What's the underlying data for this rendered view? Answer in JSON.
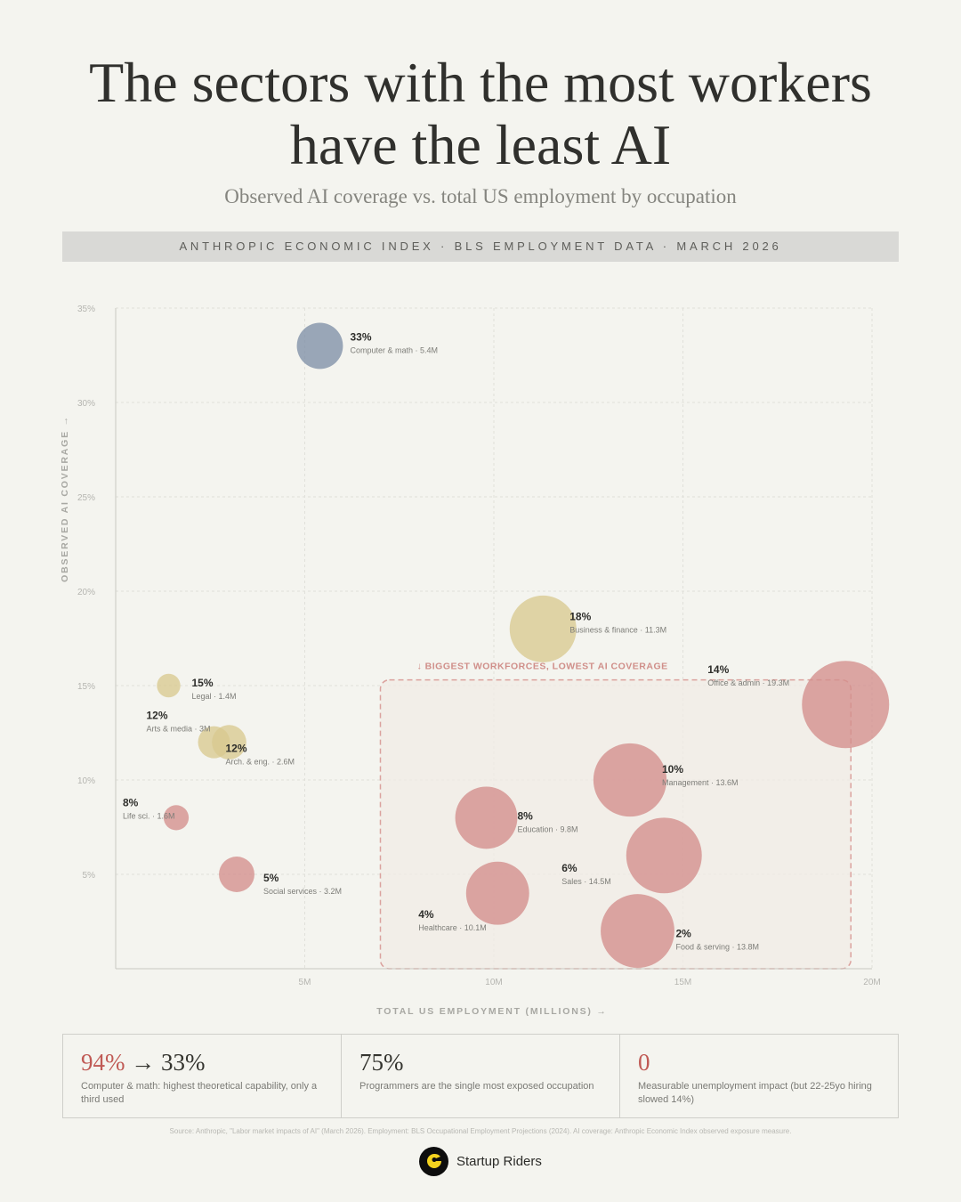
{
  "header": {
    "title_line1": "The sectors with the most workers",
    "title_line2": "have the least AI",
    "subtitle": "Observed AI coverage vs. total US employment by occupation",
    "source_bar": "ANTHROPIC ECONOMIC INDEX · BLS EMPLOYMENT DATA · MARCH 2026"
  },
  "colors": {
    "blue": "#7f8fa7",
    "gold": "#d8c98f",
    "red": "#d48e8c",
    "highlight_text": "#d08f8a",
    "highlight_fill": "#f1ebe6"
  },
  "chart_data": {
    "type": "scatter",
    "title": "Observed AI coverage vs. total US employment by occupation",
    "xlabel": "TOTAL US EMPLOYMENT (MILLIONS) →",
    "ylabel": "OBSERVED AI COVERAGE →",
    "xlim": [
      0,
      20
    ],
    "ylim": [
      0,
      35
    ],
    "x_ticks": [
      5,
      10,
      15,
      20
    ],
    "x_tick_labels": [
      "5M",
      "10M",
      "15M",
      "20M"
    ],
    "y_ticks": [
      5,
      10,
      15,
      20,
      25,
      30,
      35
    ],
    "y_tick_labels": [
      "5%",
      "10%",
      "15%",
      "20%",
      "25%",
      "30%",
      "35%"
    ],
    "grid": true,
    "highlight_region": {
      "label": "↓ BIGGEST WORKFORCES, LOWEST AI COVERAGE",
      "x_range": [
        7,
        19.3
      ],
      "y_range": [
        0,
        15.3
      ]
    },
    "points": [
      {
        "name": "Computer & math",
        "employment_m": 5.4,
        "ai_coverage": 33,
        "pct_label": "33%",
        "detail": "Computer & math · 5.4M",
        "color": "blue"
      },
      {
        "name": "Business & finance",
        "employment_m": 11.3,
        "ai_coverage": 18,
        "pct_label": "18%",
        "detail": "Business & finance · 11.3M",
        "color": "gold"
      },
      {
        "name": "Legal",
        "employment_m": 1.4,
        "ai_coverage": 15,
        "pct_label": "15%",
        "detail": "Legal · 1.4M",
        "color": "gold"
      },
      {
        "name": "Office & admin",
        "employment_m": 19.3,
        "ai_coverage": 14,
        "pct_label": "14%",
        "detail": "Office & admin · 19.3M",
        "color": "red"
      },
      {
        "name": "Arts & media",
        "employment_m": 3,
        "ai_coverage": 12,
        "pct_label": "12%",
        "detail": "Arts & media · 3M",
        "color": "gold"
      },
      {
        "name": "Arch. & eng.",
        "employment_m": 2.6,
        "ai_coverage": 12,
        "pct_label": "12%",
        "detail": "Arch. & eng. · 2.6M",
        "color": "gold"
      },
      {
        "name": "Management",
        "employment_m": 13.6,
        "ai_coverage": 10,
        "pct_label": "10%",
        "detail": "Management · 13.6M",
        "color": "red"
      },
      {
        "name": "Life sci.",
        "employment_m": 1.6,
        "ai_coverage": 8,
        "pct_label": "8%",
        "detail": "Life sci. · 1.6M",
        "color": "red"
      },
      {
        "name": "Education",
        "employment_m": 9.8,
        "ai_coverage": 8,
        "pct_label": "8%",
        "detail": "Education · 9.8M",
        "color": "red"
      },
      {
        "name": "Sales",
        "employment_m": 14.5,
        "ai_coverage": 6,
        "pct_label": "6%",
        "detail": "Sales · 14.5M",
        "color": "red"
      },
      {
        "name": "Social services",
        "employment_m": 3.2,
        "ai_coverage": 5,
        "pct_label": "5%",
        "detail": "Social services · 3.2M",
        "color": "red"
      },
      {
        "name": "Healthcare",
        "employment_m": 10.1,
        "ai_coverage": 4,
        "pct_label": "4%",
        "detail": "Healthcare · 10.1M",
        "color": "red"
      },
      {
        "name": "Food & serving",
        "employment_m": 13.8,
        "ai_coverage": 2,
        "pct_label": "2%",
        "detail": "Food & serving · 13.8M",
        "color": "red"
      }
    ]
  },
  "stats": [
    {
      "value_red": "94%",
      "value_rest": " → 33%",
      "desc": "Computer & math: highest theoretical capability, only a third used"
    },
    {
      "value_red": "",
      "value_rest": "75%",
      "desc": "Programmers are the single most exposed occupation"
    },
    {
      "value_red": "0",
      "value_rest": "",
      "desc": "Measurable unemployment impact (but 22-25yo hiring slowed 14%)"
    }
  ],
  "footnote": "Source: Anthropic, \"Labor market impacts of AI\" (March 2026). Employment: BLS Occupational Employment Projections (2024). AI coverage: Anthropic Economic Index observed exposure measure.",
  "brand": {
    "name": "Startup Riders",
    "logo_icon": "startup-riders-logo-icon"
  }
}
